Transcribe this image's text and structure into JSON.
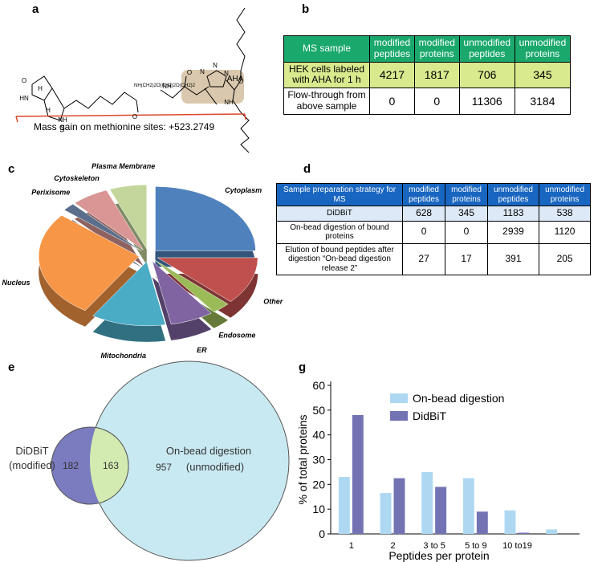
{
  "panel_labels": [
    "a",
    "b",
    "c",
    "d",
    "e",
    "g"
  ],
  "structure": {
    "labels": [
      "O",
      "HN",
      "NH",
      "H",
      "H",
      "S",
      "O",
      "NH(CH2)2O(CH2)2O(CH2)2",
      "O",
      "NH",
      "N",
      "N",
      "N",
      "AHA",
      "O",
      "NH"
    ],
    "caption": "Mass gain on methionine sites: +523.2749"
  },
  "table_b": {
    "header": [
      "MS sample",
      "modified peptides",
      "modified proteins",
      "unmodified peptides",
      "unmodified proteins"
    ],
    "rows": [
      [
        "HEK cells labeled with AHA for 1 h",
        4217,
        1817,
        706,
        345
      ],
      [
        "Flow-through from above sample",
        0,
        0,
        11306,
        3184
      ]
    ]
  },
  "table_d": {
    "header": [
      "Sample preparation strategy for MS",
      "modified peptides",
      "modified proteins",
      "unmodified peptides",
      "unmodified proteins"
    ],
    "rows": [
      [
        "DiDBiT",
        628,
        345,
        1183,
        538
      ],
      [
        "On-bead digestion of bound proteins",
        0,
        0,
        2939,
        1120
      ],
      [
        "Elution of bound peptides after digestion “On-bead digestion release 2”",
        27,
        17,
        391,
        205
      ]
    ]
  },
  "venn": {
    "left_label": "DiDBiT",
    "left_sub": "(modified)",
    "right_label": "On-bead digestion",
    "right_sub": "(unmodified)",
    "left_only": 182,
    "overlap": 163,
    "right_only": 957
  },
  "chart_data": [
    {
      "type": "pie",
      "categories": [
        "Cytoplasm",
        "Other",
        "Endosome",
        "ER",
        "Mitochondria",
        "Nucleus",
        "Perixisome",
        "Cytoskeleton",
        "Plasma Membrane"
      ],
      "values": [
        25,
        12,
        3,
        7,
        12,
        27,
        2,
        6,
        6
      ],
      "colors": [
        "#4f81bd",
        "#c0504d",
        "#9bbb59",
        "#8064a2",
        "#4bacc6",
        "#f79646",
        "#5b6f8c",
        "#d99694",
        "#c3d69b"
      ]
    },
    {
      "type": "bar",
      "xlabel": "Peptides per protein",
      "ylabel": "% of total proteins",
      "categories": [
        "1",
        "2",
        "3 to 5",
        "5 to 9",
        "10 to19",
        null
      ],
      "series": [
        {
          "name": "On-bead digestion",
          "color": "#aed8f2",
          "values": [
            23,
            16.5,
            25,
            22.5,
            9.5,
            1.8
          ]
        },
        {
          "name": "DidBiT",
          "color": "#7373b3",
          "values": [
            48,
            22.5,
            19,
            9,
            0.5,
            0
          ]
        }
      ],
      "ylim": [
        0,
        60
      ],
      "yticks": [
        0,
        10,
        20,
        30,
        40,
        50,
        60
      ],
      "legend": "upper center"
    }
  ]
}
